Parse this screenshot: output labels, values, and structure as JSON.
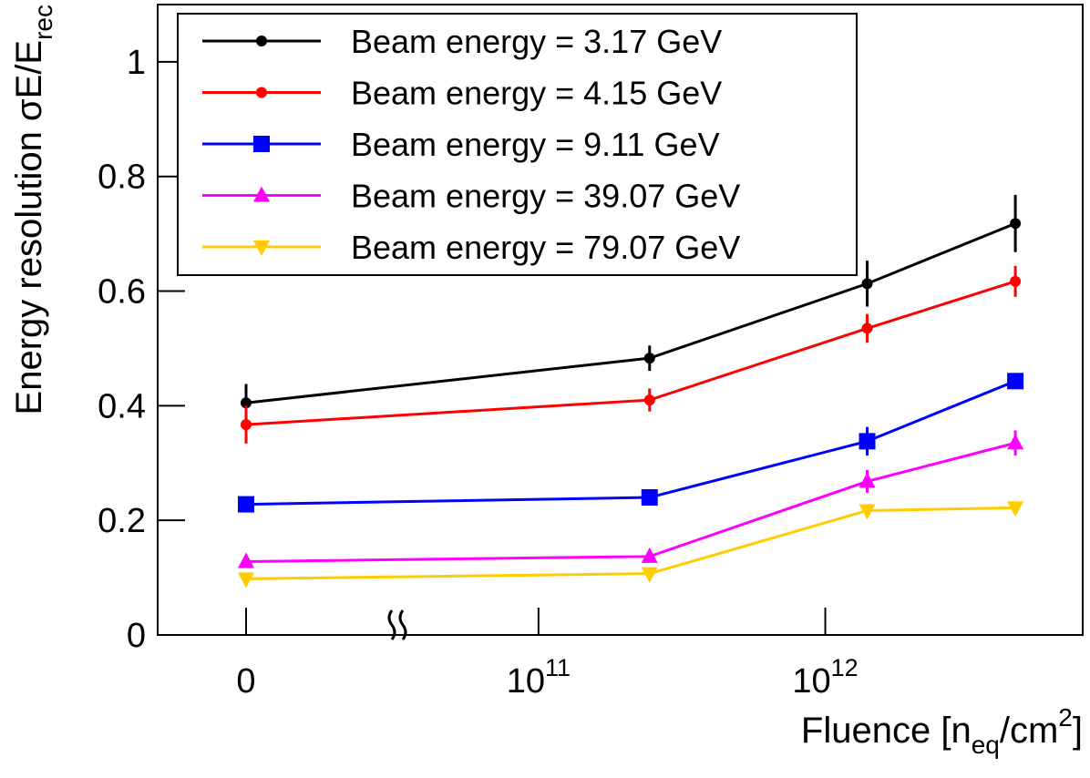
{
  "chart_data": {
    "type": "line",
    "xlabel": [
      "Fluence [n",
      "eq",
      "/cm",
      "2",
      "]"
    ],
    "ylabel": [
      "Energy resolution σE/E",
      "rec"
    ],
    "x": [
      0,
      244000000000,
      1400000000000,
      4600000000000
    ],
    "xlim": [
      4700000000,
      7900000000000
    ],
    "xlog": true,
    "axis_break": true,
    "xticks": [
      {
        "value": 0,
        "label": "0"
      },
      {
        "value": 100000000000,
        "label": "10",
        "exponent": "11"
      },
      {
        "value": 1000000000000,
        "label": "10",
        "exponent": "12"
      }
    ],
    "ylim": [
      0,
      1.1
    ],
    "yticks": [
      0,
      0.2,
      0.4,
      0.6,
      0.8,
      1
    ],
    "legend": "top-left",
    "series": [
      {
        "name": "Beam energy = 3.17 GeV",
        "color": "#000000",
        "marker": "circle",
        "values": [
          0.405,
          0.483,
          0.613,
          0.718
        ],
        "yerr": [
          0.033,
          0.022,
          0.04,
          0.05
        ]
      },
      {
        "name": "Beam energy = 4.15 GeV",
        "color": "#ff0000",
        "marker": "circle",
        "values": [
          0.367,
          0.41,
          0.535,
          0.617
        ],
        "yerr": [
          0.033,
          0.02,
          0.025,
          0.027
        ]
      },
      {
        "name": "Beam energy = 9.11 GeV",
        "color": "#0000ff",
        "marker": "square",
        "values": [
          0.228,
          0.24,
          0.338,
          0.443
        ],
        "yerr": [
          0.005,
          0.01,
          0.025,
          0.01
        ]
      },
      {
        "name": "Beam energy = 39.07 GeV",
        "color": "#ff00ff",
        "marker": "triangle-up",
        "values": [
          0.128,
          0.137,
          0.268,
          0.335
        ],
        "yerr": [
          0.005,
          0.008,
          0.02,
          0.022
        ]
      },
      {
        "name": "Beam energy = 79.07 GeV",
        "color": "#ffcc00",
        "marker": "triangle-down",
        "values": [
          0.098,
          0.107,
          0.217,
          0.222
        ],
        "yerr": [
          0.005,
          0.005,
          0.008,
          0.006
        ]
      }
    ]
  }
}
